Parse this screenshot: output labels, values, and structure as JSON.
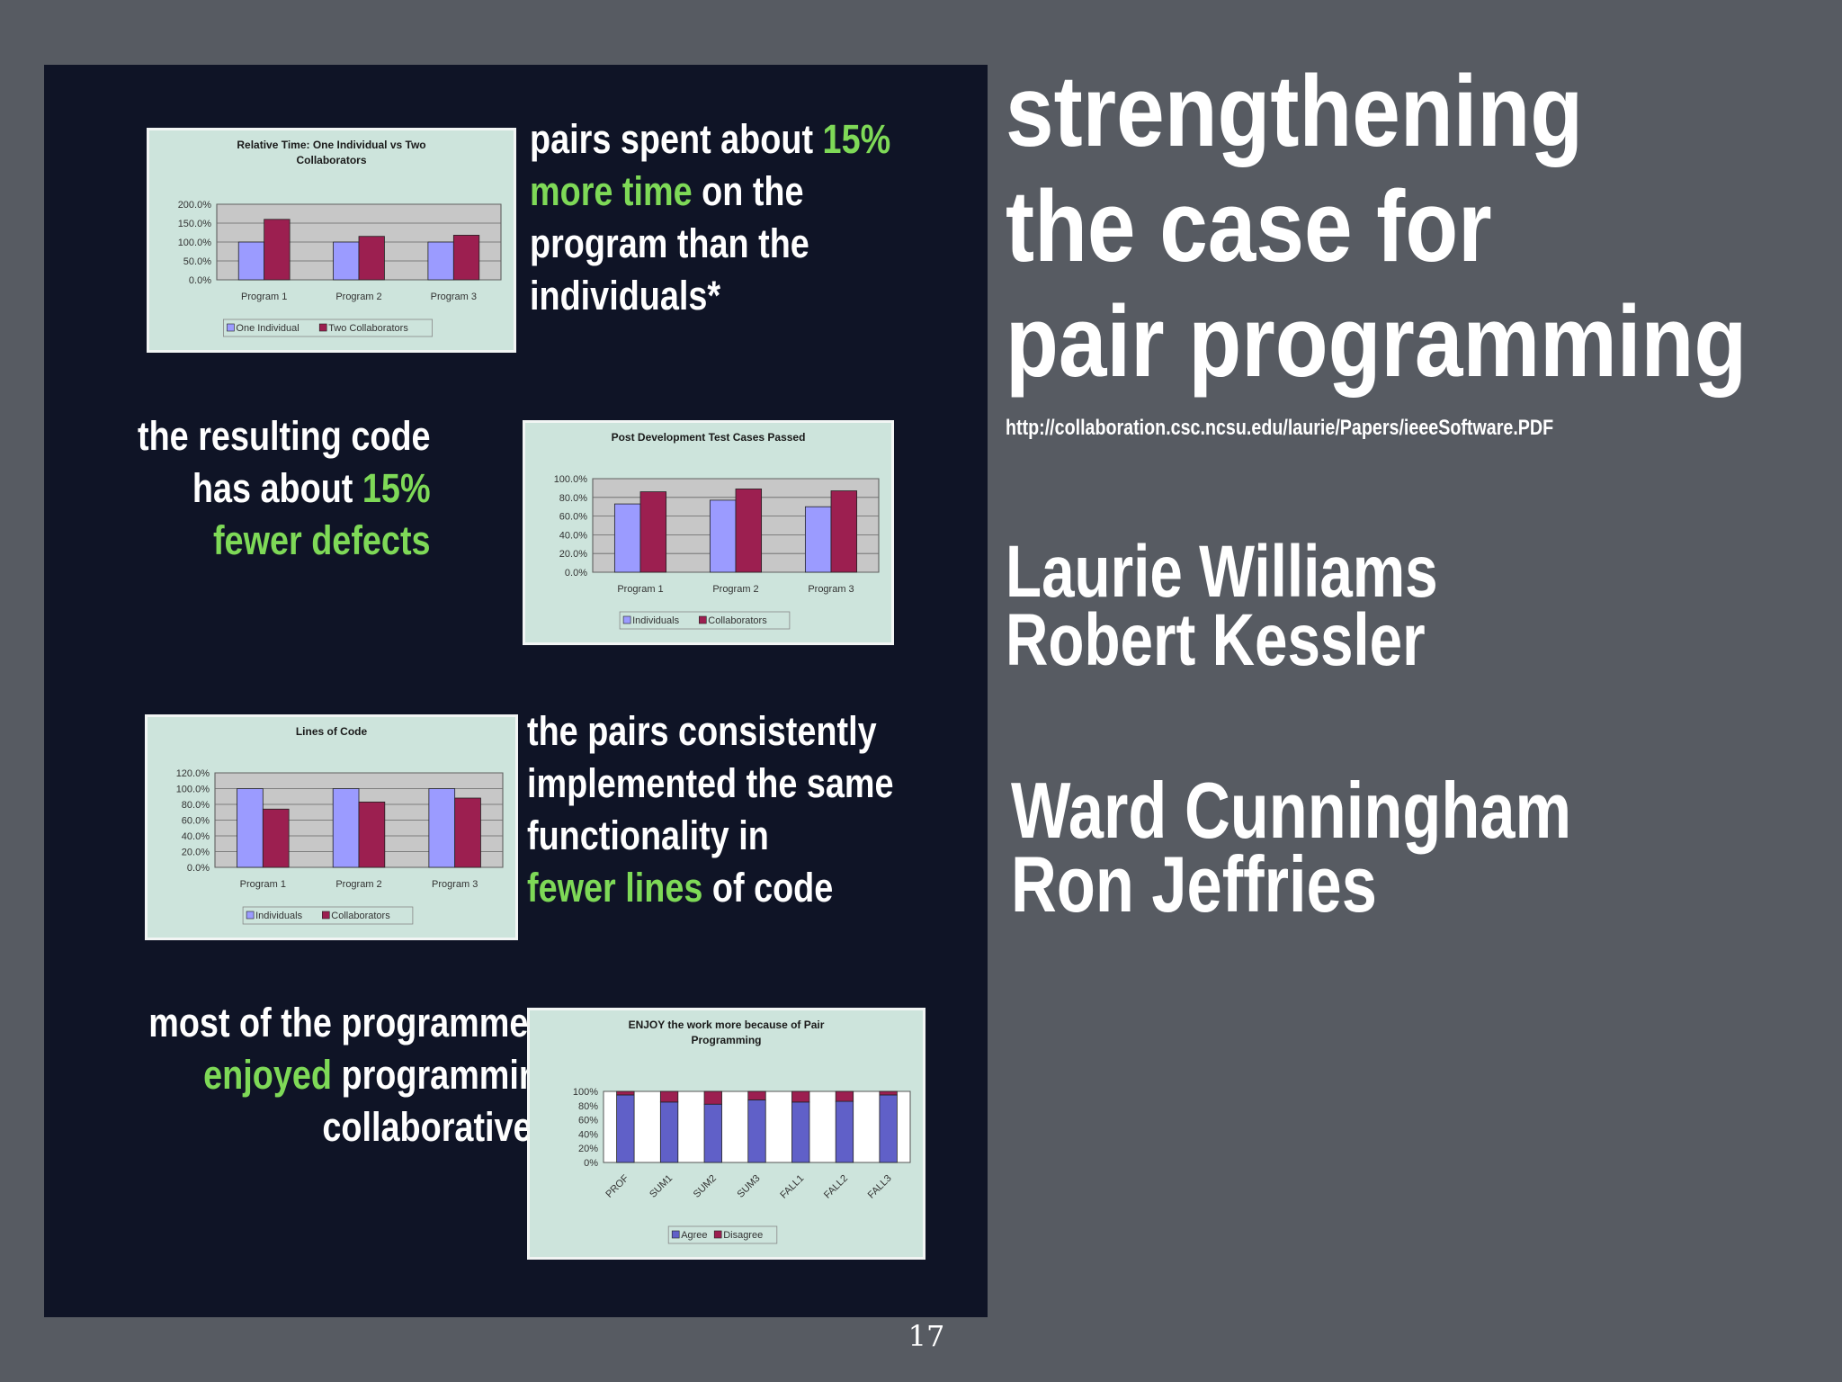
{
  "title": {
    "line1": "strengthening",
    "line2": "the case for",
    "line3": "pair programming"
  },
  "source_url": "http://collaboration.csc.ncsu.edu/laurie/Papers/ieeeSoftware.PDF",
  "authors_group1": [
    "Laurie Williams",
    "Robert Kessler"
  ],
  "authors_group2": [
    "Ward Cunningham",
    "Ron Jeffries"
  ],
  "page_number": "17",
  "colors": {
    "highlight": "#7ed957",
    "panel": "#0f1426",
    "background": "#575b62",
    "series_a": "#9b9bff",
    "series_b": "#9c1f50",
    "chart_bg": "#cde4dc"
  },
  "claims": [
    {
      "lines": [
        [
          {
            "t": "pairs spent about ",
            "hl": false
          },
          {
            "t": "15%",
            "hl": true
          }
        ],
        [
          {
            "t": "more time",
            "hl": true
          },
          {
            "t": " on the",
            "hl": false
          }
        ],
        [
          {
            "t": "program than the",
            "hl": false
          }
        ],
        [
          {
            "t": "individuals*",
            "hl": false
          }
        ]
      ]
    },
    {
      "lines": [
        [
          {
            "t": "the resulting code",
            "hl": false
          }
        ],
        [
          {
            "t": "has about ",
            "hl": false
          },
          {
            "t": "15%",
            "hl": true
          }
        ],
        [
          {
            "t": "fewer defects",
            "hl": true
          }
        ]
      ]
    },
    {
      "lines": [
        [
          {
            "t": "the pairs consistently",
            "hl": false
          }
        ],
        [
          {
            "t": "implemented the same",
            "hl": false
          }
        ],
        [
          {
            "t": "functionality in",
            "hl": false
          }
        ],
        [
          {
            "t": "fewer lines",
            "hl": true
          },
          {
            "t": " of code",
            "hl": false
          }
        ]
      ]
    },
    {
      "lines": [
        [
          {
            "t": "most of the programmers",
            "hl": false
          }
        ],
        [
          {
            "t": "enjoyed",
            "hl": true
          },
          {
            "t": " programming",
            "hl": false
          }
        ],
        [
          {
            "t": "collaboratively",
            "hl": false
          }
        ]
      ]
    }
  ],
  "chart_data": [
    {
      "type": "bar",
      "title": "Relative Time:  One Individual vs Two Collaborators",
      "title_lines": [
        "Relative Time:  One Individual vs Two",
        "Collaborators"
      ],
      "categories": [
        "Program 1",
        "Program 2",
        "Program 3"
      ],
      "yticks": [
        "200.0%",
        "150.0%",
        "100.0%",
        "50.0%",
        "0.0%"
      ],
      "ylim": [
        0,
        200
      ],
      "series": [
        {
          "name": "One Individual",
          "values": [
            100,
            100,
            100
          ],
          "color": "#9b9bff"
        },
        {
          "name": "Two Collaborators",
          "values": [
            160,
            115,
            118
          ],
          "color": "#9c1f50"
        }
      ],
      "legend": "bottom",
      "grid": true
    },
    {
      "type": "bar",
      "title": "Post Development Test Cases Passed",
      "title_lines": [
        "Post Development Test Cases Passed"
      ],
      "categories": [
        "Program 1",
        "Program 2",
        "Program 3"
      ],
      "yticks": [
        "100.0%",
        "80.0%",
        "60.0%",
        "40.0%",
        "20.0%",
        "0.0%"
      ],
      "ylim": [
        0,
        100
      ],
      "series": [
        {
          "name": "Individuals",
          "values": [
            73,
            77,
            70
          ],
          "color": "#9b9bff"
        },
        {
          "name": "Collaborators",
          "values": [
            86,
            89,
            87
          ],
          "color": "#9c1f50"
        }
      ],
      "legend": "bottom",
      "grid": true
    },
    {
      "type": "bar",
      "title": "Lines of Code",
      "title_lines": [
        "Lines of Code"
      ],
      "categories": [
        "Program 1",
        "Program 2",
        "Program 3"
      ],
      "yticks": [
        "120.0%",
        "100.0%",
        "80.0%",
        "60.0%",
        "40.0%",
        "20.0%",
        "0.0%"
      ],
      "ylim": [
        0,
        120
      ],
      "series": [
        {
          "name": "Individuals",
          "values": [
            100,
            100,
            100
          ],
          "color": "#9b9bff"
        },
        {
          "name": "Collaborators",
          "values": [
            74,
            83,
            88
          ],
          "color": "#9c1f50"
        }
      ],
      "legend": "bottom",
      "grid": true
    },
    {
      "type": "bar",
      "stacked": true,
      "title": "ENJOY the work more because of Pair Programming",
      "title_lines": [
        "ENJOY the work more because of Pair",
        "Programming"
      ],
      "categories": [
        "PROF",
        "SUM1",
        "SUM2",
        "SUM3",
        "FALL1",
        "FALL2",
        "FALL3"
      ],
      "yticks": [
        "100%",
        "80%",
        "60%",
        "40%",
        "20%",
        "0%"
      ],
      "ylim": [
        0,
        100
      ],
      "series": [
        {
          "name": "Agree",
          "values": [
            95,
            85,
            82,
            88,
            85,
            86,
            95
          ],
          "color": "#6060c8"
        },
        {
          "name": "Disagree",
          "values": [
            5,
            15,
            18,
            12,
            15,
            14,
            5
          ],
          "color": "#9c1f50"
        }
      ],
      "legend": "bottom",
      "grid": false
    }
  ]
}
